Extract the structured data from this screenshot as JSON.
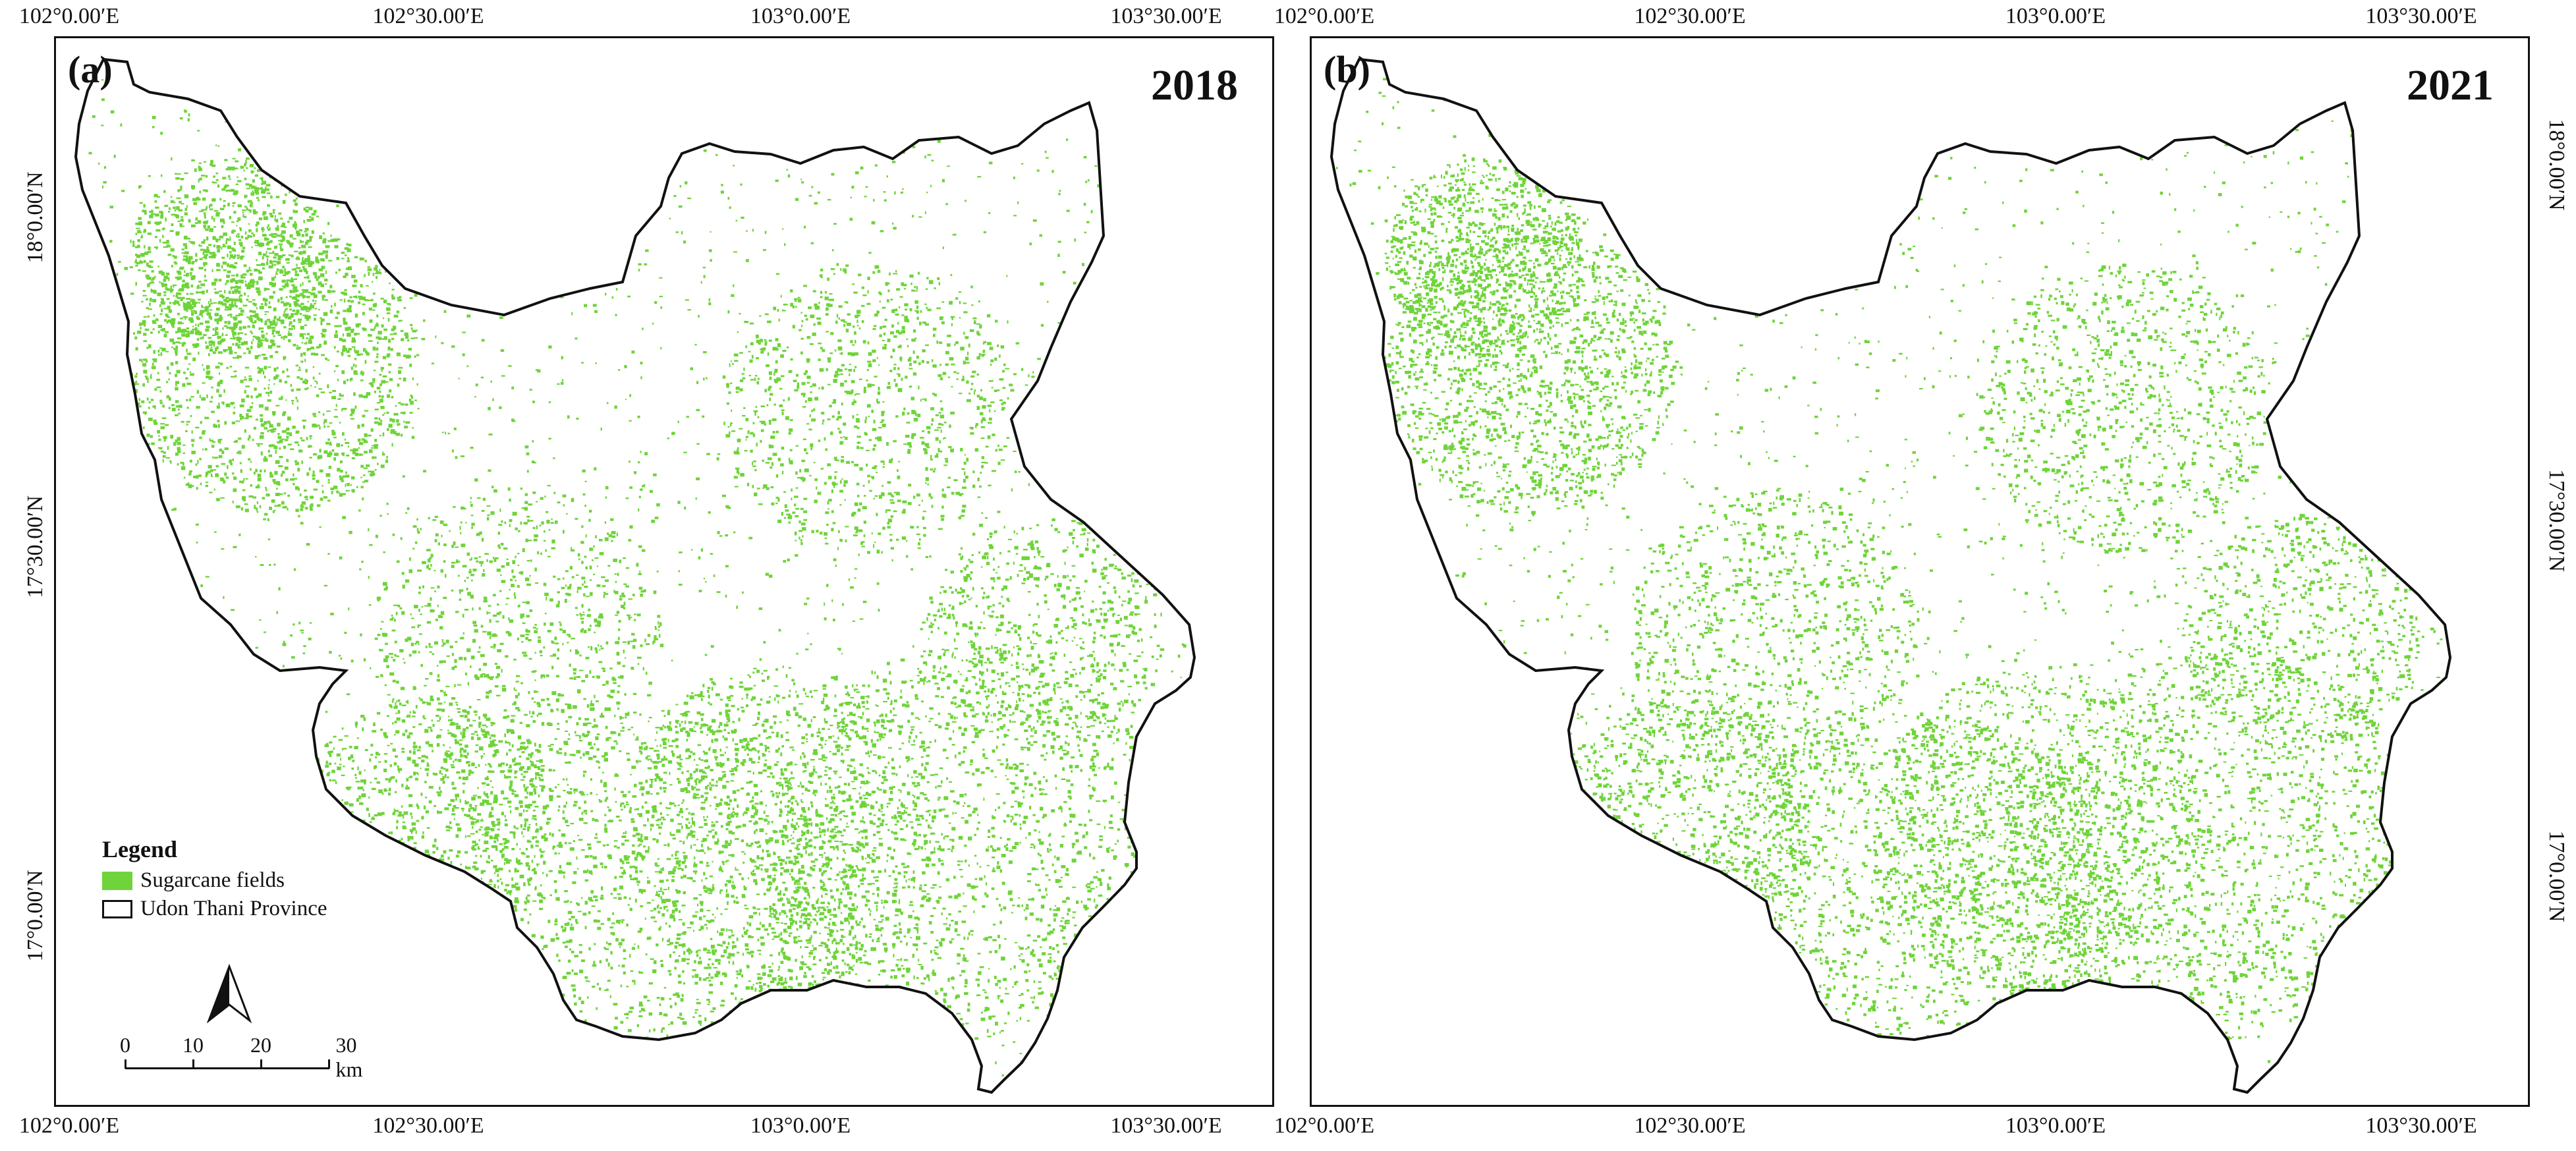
{
  "panels": [
    {
      "label": "(a)",
      "year": "2018"
    },
    {
      "label": "(b)",
      "year": "2021"
    }
  ],
  "axes": {
    "longitude_ticks": [
      "102°0.00′E",
      "102°30.00′E",
      "103°0.00′E",
      "103°30.00′E"
    ],
    "latitude_ticks": [
      "18°0.00′N",
      "17°30.00′N",
      "17°0.00′N"
    ]
  },
  "legend": {
    "title": "Legend",
    "items": [
      {
        "label": "Sugarcane fields",
        "color": "#6fd43a"
      },
      {
        "label": "Udon Thani Province",
        "color": "#ffffff"
      }
    ]
  },
  "scale": {
    "values": [
      "0",
      "10",
      "20",
      "30 km"
    ]
  },
  "colors": {
    "field": "#6fd43a",
    "boundary": "#111111"
  }
}
